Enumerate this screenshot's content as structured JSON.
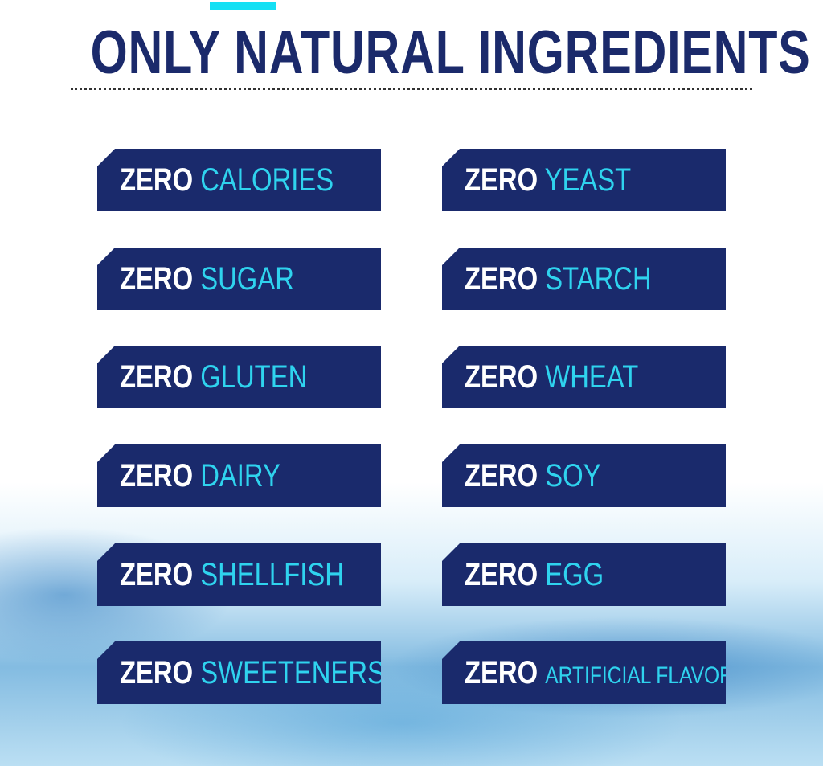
{
  "title": "ONLY NATURAL INGREDIENTS",
  "colors": {
    "navy": "#1a2a6c",
    "cyan": "#2fd3ee",
    "accent": "#14e0f4"
  },
  "prefix": "ZERO",
  "left_column": [
    "CALORIES",
    "SUGAR",
    "GLUTEN",
    "DAIRY",
    "SHELLFISH",
    "SWEETENERS"
  ],
  "right_column": [
    "YEAST",
    "STARCH",
    "WHEAT",
    "SOY",
    "EGG",
    "ARTIFICIAL FLAVORS"
  ]
}
